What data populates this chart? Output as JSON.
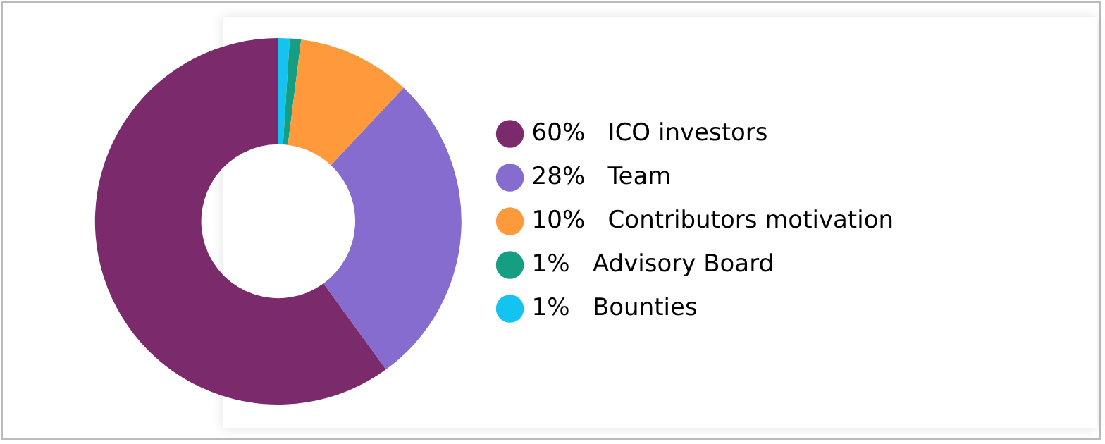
{
  "chart_data": {
    "type": "donut",
    "categories": [
      "ICO investors",
      "Team",
      "Contributors motivation",
      "Advisory Board",
      "Bounties"
    ],
    "values": [
      60,
      28,
      10,
      1,
      1
    ],
    "value_labels": [
      "60%",
      "28%",
      "10%",
      "1%",
      "1%"
    ],
    "colors": [
      "#7b2a6b",
      "#866ccf",
      "#ff9a3c",
      "#169e82",
      "#14c3f0"
    ],
    "legend": "right"
  }
}
